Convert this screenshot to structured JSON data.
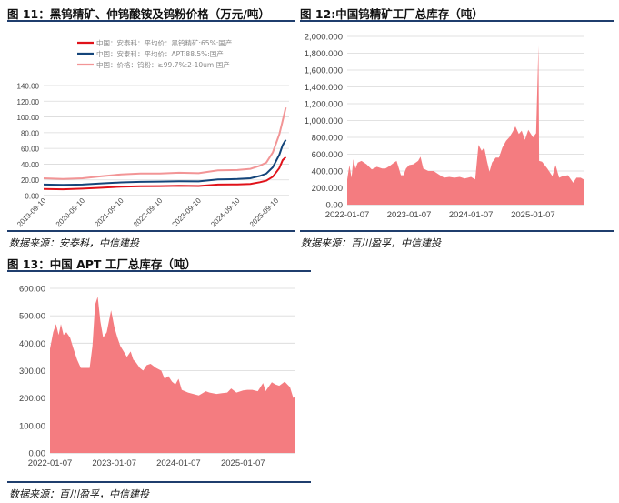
{
  "figures": {
    "fig11": {
      "title": "图 11：黑钨精矿、仲钨酸铵及钨粉价格（万元/吨）",
      "source": "数据来源：安泰科，中信建投"
    },
    "fig12": {
      "title": "图 12:中国钨精矿工厂总库存（吨）",
      "source": "数据来源：百川盈孚，中信建投"
    },
    "fig13": {
      "title": "图 13：中国 APT 工厂总库存（吨）",
      "source": "数据来源：百川盈孚，中信建投"
    }
  },
  "colors": {
    "red": "#e0121a",
    "navy": "#14457a",
    "pink": "#f29596",
    "area": "#f47c80",
    "rule": "#1f3e6d"
  },
  "chart_data": [
    {
      "id": "fig11",
      "type": "line",
      "yticks": [
        "0.00",
        "20.00",
        "40.00",
        "60.00",
        "80.00",
        "100.00",
        "120.00",
        "140.00"
      ],
      "ylim": [
        0,
        140
      ],
      "xticks": [
        "2019-09-10",
        "2020-09-10",
        "2021-09-10",
        "2022-09-10",
        "2023-09-10",
        "2024-09-10",
        "2025-09-10"
      ],
      "xlim": [
        "2019-09-10",
        "2026-01-10"
      ],
      "grid": true,
      "legend_position": "top-left",
      "series": [
        {
          "name": "中国：安泰科：平均价：黑钨精矿:65%:国产",
          "color": "#e0121a",
          "points": [
            [
              "2019-09-10",
              8.5
            ],
            [
              "2020-03-10",
              8.0
            ],
            [
              "2020-09-10",
              8.8
            ],
            [
              "2021-03-10",
              10.0
            ],
            [
              "2021-09-10",
              11.3
            ],
            [
              "2022-03-10",
              11.8
            ],
            [
              "2022-09-10",
              12.0
            ],
            [
              "2023-03-10",
              12.5
            ],
            [
              "2023-09-10",
              12.2
            ],
            [
              "2024-03-10",
              14.0
            ],
            [
              "2024-09-10",
              14.2
            ],
            [
              "2025-01-10",
              14.8
            ],
            [
              "2025-04-10",
              17.0
            ],
            [
              "2025-06-10",
              19.0
            ],
            [
              "2025-08-10",
              24.0
            ],
            [
              "2025-10-10",
              35.0
            ],
            [
              "2025-11-10",
              45.0
            ],
            [
              "2025-12-10",
              49.0
            ]
          ]
        },
        {
          "name": "中国：安泰科：平均价：APT:88.5%:国产",
          "color": "#14457a",
          "points": [
            [
              "2019-09-10",
              14.0
            ],
            [
              "2020-03-10",
              13.5
            ],
            [
              "2020-09-10",
              14.0
            ],
            [
              "2021-03-10",
              15.5
            ],
            [
              "2021-09-10",
              16.8
            ],
            [
              "2022-03-10",
              17.5
            ],
            [
              "2022-09-10",
              17.8
            ],
            [
              "2023-03-10",
              18.2
            ],
            [
              "2023-09-10",
              18.0
            ],
            [
              "2024-03-10",
              20.5
            ],
            [
              "2024-09-10",
              21.0
            ],
            [
              "2025-01-10",
              22.0
            ],
            [
              "2025-04-10",
              25.0
            ],
            [
              "2025-06-10",
              28.0
            ],
            [
              "2025-08-10",
              36.0
            ],
            [
              "2025-10-10",
              52.0
            ],
            [
              "2025-11-10",
              64.0
            ],
            [
              "2025-12-10",
              71.0
            ]
          ]
        },
        {
          "name": "中国：价格：钨粉：≥99.7%:2-10um:国产",
          "color": "#f29596",
          "points": [
            [
              "2019-09-10",
              22.0
            ],
            [
              "2020-03-10",
              21.0
            ],
            [
              "2020-09-10",
              22.0
            ],
            [
              "2021-03-10",
              24.5
            ],
            [
              "2021-09-10",
              27.0
            ],
            [
              "2022-03-10",
              28.0
            ],
            [
              "2022-09-10",
              28.0
            ],
            [
              "2023-03-10",
              29.0
            ],
            [
              "2023-09-10",
              28.5
            ],
            [
              "2024-03-10",
              32.0
            ],
            [
              "2024-09-10",
              32.5
            ],
            [
              "2025-01-10",
              34.0
            ],
            [
              "2025-04-10",
              38.0
            ],
            [
              "2025-06-10",
              42.0
            ],
            [
              "2025-08-10",
              55.0
            ],
            [
              "2025-10-10",
              78.0
            ],
            [
              "2025-11-10",
              95.0
            ],
            [
              "2025-12-10",
              112.0
            ]
          ]
        }
      ]
    },
    {
      "id": "fig12",
      "type": "area",
      "yticks": [
        "0.00",
        "200.000",
        "400.000",
        "600.000",
        "800.000",
        "1,000.000",
        "1,200.000",
        "1,400.000",
        "1,600.000",
        "1,800.000",
        "2,000.000"
      ],
      "ylim": [
        0,
        2000
      ],
      "xticks": [
        "2022-01-07",
        "2023-01-07",
        "2024-01-07",
        "2025-01-07"
      ],
      "xlim": [
        "2022-01-07",
        "2025-11-01"
      ],
      "grid": true,
      "series": [
        {
          "color": "#f47c80",
          "points": [
            [
              "2022-01-07",
              300
            ],
            [
              "2022-01-20",
              470
            ],
            [
              "2022-02-01",
              320
            ],
            [
              "2022-02-12",
              540
            ],
            [
              "2022-02-25",
              430
            ],
            [
              "2022-03-10",
              500
            ],
            [
              "2022-04-01",
              520
            ],
            [
              "2022-05-01",
              480
            ],
            [
              "2022-06-01",
              420
            ],
            [
              "2022-07-01",
              450
            ],
            [
              "2022-08-01",
              430
            ],
            [
              "2022-08-20",
              430
            ],
            [
              "2022-09-15",
              460
            ],
            [
              "2022-10-10",
              500
            ],
            [
              "2022-10-25",
              520
            ],
            [
              "2022-11-20",
              350
            ],
            [
              "2022-12-05",
              350
            ],
            [
              "2022-12-20",
              430
            ],
            [
              "2023-01-07",
              470
            ],
            [
              "2023-02-01",
              480
            ],
            [
              "2023-03-01",
              520
            ],
            [
              "2023-03-15",
              570
            ],
            [
              "2023-04-01",
              430
            ],
            [
              "2023-05-01",
              400
            ],
            [
              "2023-06-01",
              400
            ],
            [
              "2023-07-01",
              360
            ],
            [
              "2023-08-01",
              320
            ],
            [
              "2023-09-01",
              330
            ],
            [
              "2023-10-01",
              320
            ],
            [
              "2023-11-01",
              330
            ],
            [
              "2023-12-01",
              310
            ],
            [
              "2024-01-07",
              330
            ],
            [
              "2024-02-01",
              300
            ],
            [
              "2024-02-20",
              710
            ],
            [
              "2024-03-10",
              640
            ],
            [
              "2024-03-25",
              680
            ],
            [
              "2024-04-10",
              520
            ],
            [
              "2024-04-25",
              390
            ],
            [
              "2024-05-10",
              500
            ],
            [
              "2024-06-01",
              560
            ],
            [
              "2024-06-20",
              560
            ],
            [
              "2024-07-10",
              680
            ],
            [
              "2024-08-01",
              760
            ],
            [
              "2024-08-20",
              800
            ],
            [
              "2024-09-10",
              870
            ],
            [
              "2024-09-25",
              930
            ],
            [
              "2024-10-15",
              840
            ],
            [
              "2024-11-01",
              880
            ],
            [
              "2024-11-20",
              770
            ],
            [
              "2024-12-10",
              890
            ],
            [
              "2025-01-07",
              800
            ],
            [
              "2025-01-25",
              850
            ],
            [
              "2025-02-08",
              1890
            ],
            [
              "2025-02-12",
              520
            ],
            [
              "2025-03-01",
              510
            ],
            [
              "2025-04-01",
              430
            ],
            [
              "2025-05-01",
              340
            ],
            [
              "2025-05-20",
              470
            ],
            [
              "2025-06-10",
              320
            ],
            [
              "2025-07-01",
              340
            ],
            [
              "2025-08-01",
              350
            ],
            [
              "2025-09-01",
              260
            ],
            [
              "2025-09-20",
              320
            ],
            [
              "2025-10-15",
              320
            ],
            [
              "2025-11-01",
              300
            ]
          ]
        }
      ]
    },
    {
      "id": "fig13",
      "type": "area",
      "yticks": [
        "0.00",
        "100.00",
        "200.00",
        "300.00",
        "400.00",
        "500.00",
        "600.00"
      ],
      "ylim": [
        0,
        600
      ],
      "xticks": [
        "2022-01-07",
        "2023-01-07",
        "2024-01-07",
        "2025-01-07"
      ],
      "xlim": [
        "2022-01-07",
        "2025-11-01"
      ],
      "grid": true,
      "series": [
        {
          "color": "#f47c80",
          "points": [
            [
              "2022-01-07",
              380
            ],
            [
              "2022-01-25",
              440
            ],
            [
              "2022-02-10",
              470
            ],
            [
              "2022-02-25",
              430
            ],
            [
              "2022-03-10",
              470
            ],
            [
              "2022-03-25",
              430
            ],
            [
              "2022-04-10",
              440
            ],
            [
              "2022-05-01",
              420
            ],
            [
              "2022-05-20",
              380
            ],
            [
              "2022-06-10",
              340
            ],
            [
              "2022-07-01",
              310
            ],
            [
              "2022-07-20",
              310
            ],
            [
              "2022-08-20",
              310
            ],
            [
              "2022-09-05",
              390
            ],
            [
              "2022-09-20",
              540
            ],
            [
              "2022-10-05",
              570
            ],
            [
              "2022-10-20",
              480
            ],
            [
              "2022-11-05",
              420
            ],
            [
              "2022-11-25",
              440
            ],
            [
              "2022-12-20",
              520
            ],
            [
              "2023-01-07",
              460
            ],
            [
              "2023-01-25",
              420
            ],
            [
              "2023-02-10",
              390
            ],
            [
              "2023-03-01",
              370
            ],
            [
              "2023-03-20",
              350
            ],
            [
              "2023-04-10",
              370
            ],
            [
              "2023-04-25",
              340
            ],
            [
              "2023-05-10",
              330
            ],
            [
              "2023-06-01",
              310
            ],
            [
              "2023-06-20",
              300
            ],
            [
              "2023-07-10",
              320
            ],
            [
              "2023-08-01",
              325
            ],
            [
              "2023-09-01",
              310
            ],
            [
              "2023-10-01",
              300
            ],
            [
              "2023-10-20",
              270
            ],
            [
              "2023-11-10",
              280
            ],
            [
              "2023-12-01",
              260
            ],
            [
              "2023-12-20",
              250
            ],
            [
              "2024-01-07",
              270
            ],
            [
              "2024-01-25",
              230
            ],
            [
              "2024-03-01",
              220
            ],
            [
              "2024-05-01",
              210
            ],
            [
              "2024-06-10",
              225
            ],
            [
              "2024-07-01",
              220
            ],
            [
              "2024-08-10",
              215
            ],
            [
              "2024-09-10",
              218
            ],
            [
              "2024-10-10",
              220
            ],
            [
              "2024-11-01",
              235
            ],
            [
              "2024-12-01",
              220
            ],
            [
              "2025-01-07",
              228
            ],
            [
              "2025-02-01",
              230
            ],
            [
              "2025-03-01",
              230
            ],
            [
              "2025-04-01",
              225
            ],
            [
              "2025-05-01",
              255
            ],
            [
              "2025-05-15",
              225
            ],
            [
              "2025-06-20",
              258
            ],
            [
              "2025-07-10",
              250
            ],
            [
              "2025-08-01",
              245
            ],
            [
              "2025-09-01",
              260
            ],
            [
              "2025-10-01",
              240
            ],
            [
              "2025-10-20",
              200
            ],
            [
              "2025-11-01",
              210
            ]
          ]
        }
      ]
    }
  ]
}
